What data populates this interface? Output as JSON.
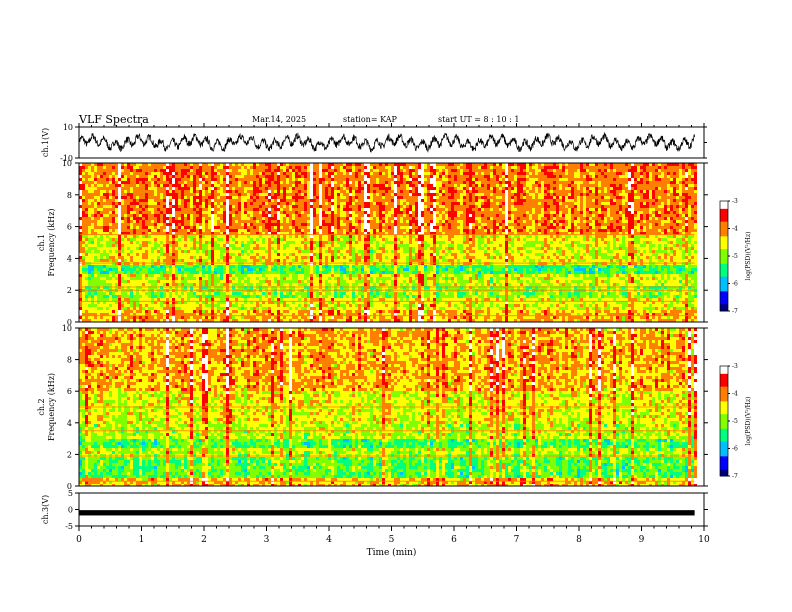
{
  "header": {
    "title": "VLF Spectra",
    "date": "Mar.14, 2025",
    "station": "station= KAP",
    "start": "start  UT  =   8  : 10 : 1"
  },
  "chart_data": [
    {
      "type": "line",
      "panel": "ch1-waveform",
      "ylabel": "ch.1(V)",
      "ylim": [
        -10,
        10
      ],
      "yticks": [
        10,
        -10
      ],
      "xlim": [
        0,
        10
      ],
      "series": [
        {
          "values_note": "",
          "color": "#000000"
        }
      ],
      "signal": {
        "amplitude_approx": 5,
        "range_approx": [
          -6,
          6
        ]
      }
    },
    {
      "type": "heatmap",
      "panel": "ch1-spectrogram",
      "ylabel": "ch.1\nFrequency (kHz)",
      "ylim": [
        0,
        10
      ],
      "yticks": [
        0,
        2,
        4,
        6,
        8,
        10
      ],
      "xlim": [
        0,
        9.85
      ],
      "colorbar": {
        "label": "log(PSD)(V²/Hz)",
        "ticks": [
          -3,
          -4,
          -5,
          -6,
          -7
        ],
        "range": [
          -7,
          -3
        ]
      },
      "bands": [
        {
          "from_khz": 0,
          "to_khz": 0.8,
          "level": -4.2
        },
        {
          "from_khz": 0.8,
          "to_khz": 1.5,
          "level": -4.6
        },
        {
          "from_khz": 1.5,
          "to_khz": 2.3,
          "level": -5.0
        },
        {
          "from_khz": 2.3,
          "to_khz": 3.0,
          "level": -4.7
        },
        {
          "from_khz": 3.0,
          "to_khz": 3.5,
          "level": -5.4
        },
        {
          "from_khz": 3.5,
          "to_khz": 4.3,
          "level": -4.5
        },
        {
          "from_khz": 4.3,
          "to_khz": 5.5,
          "level": -4.6
        },
        {
          "from_khz": 5.5,
          "to_khz": 10,
          "level": -4.0
        }
      ],
      "lines_khz": [
        0.4,
        1.3,
        2.0,
        2.2,
        3.7,
        5.5
      ]
    },
    {
      "type": "heatmap",
      "panel": "ch2-spectrogram",
      "ylabel": "ch.2\nFrequency (kHz)",
      "ylim": [
        0,
        10
      ],
      "yticks": [
        0,
        2,
        4,
        6,
        8,
        10
      ],
      "xlim": [
        0,
        9.85
      ],
      "colorbar": {
        "label": "log(PSD)(V²/Hz)",
        "ticks": [
          -3,
          -4,
          -5,
          -6,
          -7
        ],
        "range": [
          -7,
          -3
        ]
      },
      "bands": [
        {
          "from_khz": 0,
          "to_khz": 0.5,
          "level": -4.3
        },
        {
          "from_khz": 0.5,
          "to_khz": 1.8,
          "level": -5.2
        },
        {
          "from_khz": 1.8,
          "to_khz": 2.5,
          "level": -4.8
        },
        {
          "from_khz": 2.5,
          "to_khz": 3.0,
          "level": -5.3
        },
        {
          "from_khz": 3.0,
          "to_khz": 4.0,
          "level": -4.8
        },
        {
          "from_khz": 4.0,
          "to_khz": 6.0,
          "level": -4.6
        },
        {
          "from_khz": 6.0,
          "to_khz": 10,
          "level": -4.2
        }
      ],
      "lines_khz": [
        0.3,
        1.9,
        3.5,
        5.0
      ]
    },
    {
      "type": "line",
      "panel": "ch3-waveform",
      "ylabel": "ch.3(V)",
      "ylim": [
        -5,
        5
      ],
      "yticks": [
        5,
        0,
        -5
      ],
      "xlim": [
        0,
        10
      ],
      "signal": {
        "center": -1,
        "amplitude_approx": 0.5
      },
      "xlabel": "Time (min)",
      "xticks": [
        0,
        1,
        2,
        3,
        4,
        5,
        6,
        7,
        8,
        9,
        10
      ]
    }
  ],
  "colors": {
    "colormap": [
      "#00007f",
      "#0000ff",
      "#00bfff",
      "#00ff7f",
      "#7fff00",
      "#ffff00",
      "#ff7f00",
      "#ff0000",
      "#ffffff"
    ],
    "axis": "#000000",
    "background": "#ffffff"
  }
}
